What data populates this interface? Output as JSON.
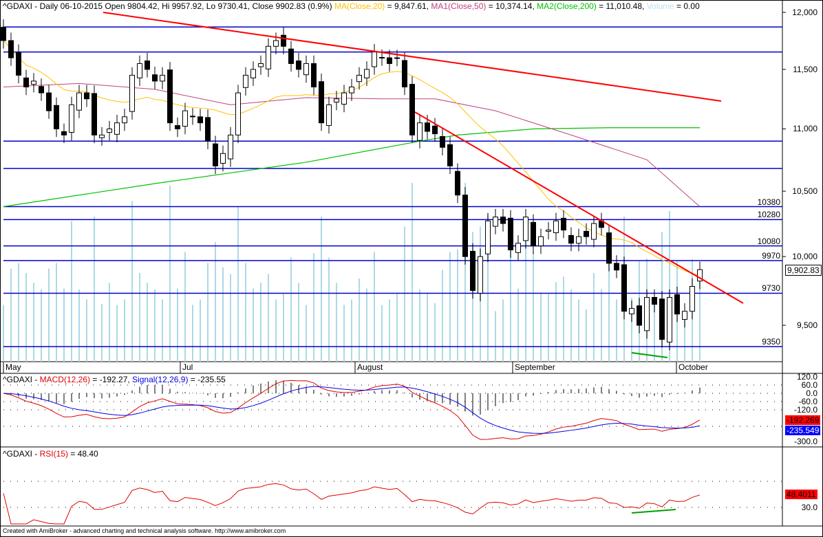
{
  "header": {
    "symbol": "^GDAXI",
    "text": "^GDAXI - Daily 06-10-2015 Open 9804.42, Hi 9957.92, Lo 9730.41, Close 9902.83 (0.9%)",
    "ma20_label": "MA(Close,20)",
    "ma20_val": " = 9,847.61, ",
    "ma50_label": "MA1(Close,50)",
    "ma50_val": " = 10,374.14, ",
    "ma200_label": "MA2(Close,200)",
    "ma200_val": " = 11,010.48, ",
    "vol_label": "Volume",
    "vol_val": " = 0.00"
  },
  "macd_header": {
    "prefix": "^GDAXI - ",
    "macd_label": "MACD(12,26)",
    "macd_val": " = -192.27, ",
    "signal_label": "Signal(12,26,9)",
    "signal_val": " = -235.55"
  },
  "rsi_header": {
    "prefix": "^GDAXI - ",
    "rsi_label": "RSI(15)",
    "rsi_val": " = 48.40"
  },
  "footer": "Created with AmiBroker - advanced charting and technical analysis software. http://www.amibroker.com",
  "colors": {
    "ma20": "#ffc000",
    "ma50": "#c04080",
    "ma200": "#00c000",
    "level": "#0000cc",
    "trend": "#ff0000",
    "volume": "#add8e6"
  },
  "price_axis": [
    "12,000",
    "11,500",
    "11,000",
    "10,500",
    "10,000",
    "9,500"
  ],
  "price_tag": "9,902.83",
  "levels": [
    {
      "v": 11870
    },
    {
      "v": 11650
    },
    {
      "v": 10900
    },
    {
      "v": 10680
    },
    {
      "v": 10380,
      "label": "10380"
    },
    {
      "v": 10280,
      "label": "10280"
    },
    {
      "v": 10080,
      "label": "10080"
    },
    {
      "v": 9970,
      "label": "9970"
    },
    {
      "v": 9730,
      "label": "9730"
    },
    {
      "v": 9350,
      "label": "9350"
    }
  ],
  "months": [
    "May",
    "Jul",
    "August",
    "September",
    "October"
  ],
  "macd_axis": [
    "120.0",
    "60.0",
    "0.0",
    "-60.0",
    "-120.0",
    "-300.0"
  ],
  "macd_tags": {
    "macd": "-192.269",
    "signal": "-235.549"
  },
  "rsi_axis": [
    "30.0"
  ],
  "rsi_tag": "48.4011",
  "chart_data": {
    "type": "candlestick",
    "title": "^GDAXI Daily",
    "closes": [
      11750,
      11600,
      11450,
      11350,
      11400,
      11300,
      11150,
      11000,
      10950,
      11200,
      11300,
      11250,
      10950,
      10950,
      11000,
      11050,
      11100,
      11450,
      11550,
      11500,
      11400,
      11450,
      11050,
      11000,
      11150,
      11100,
      11050,
      10900,
      10700,
      10800,
      10950,
      11300,
      11450,
      11500,
      11550,
      11700,
      11750,
      11700,
      11550,
      11500,
      11550,
      11350,
      11050,
      11200,
      11250,
      11300,
      11350,
      11450,
      11500,
      11650,
      11600,
      11550,
      11600,
      11350,
      10950,
      11050,
      10980,
      10960,
      10850,
      10700,
      10470,
      10000,
      9750,
      10000,
      10270,
      10300,
      10250,
      10050,
      10100,
      10300,
      10080,
      10150,
      10200,
      10270,
      10200,
      10100,
      10150,
      10150,
      10250,
      10220,
      9950,
      9900,
      9600,
      9620,
      9500,
      9700,
      9650,
      9400,
      9700,
      9580,
      9600,
      9780,
      9903
    ],
    "ma50": [
      [
        0,
        11350
      ],
      [
        10,
        11380
      ],
      [
        20,
        11330
      ],
      [
        30,
        11200
      ],
      [
        40,
        11260
      ],
      [
        50,
        11250
      ],
      [
        57,
        11250
      ],
      [
        65,
        11150
      ],
      [
        75,
        10950
      ],
      [
        85,
        10750
      ],
      [
        92,
        10380
      ]
    ],
    "ma200": [
      [
        0,
        10380
      ],
      [
        20,
        10560
      ],
      [
        40,
        10730
      ],
      [
        55,
        10900
      ],
      [
        60,
        10950
      ],
      [
        70,
        11000
      ],
      [
        80,
        11010
      ],
      [
        92,
        11010
      ]
    ],
    "ylim": [
      9300,
      12100
    ],
    "scale": "log"
  }
}
